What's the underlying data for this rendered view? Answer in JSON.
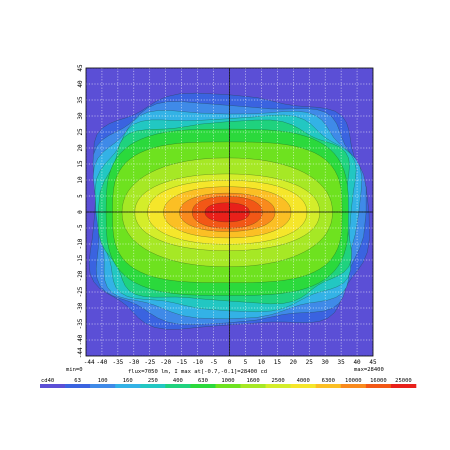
{
  "chart_data": {
    "type": "heatmap",
    "title": "",
    "xlabel": "",
    "ylabel": "",
    "x_ticks": [
      -44,
      -40,
      -35,
      -30,
      -25,
      -20,
      -15,
      -10,
      -5,
      0,
      5,
      10,
      15,
      20,
      25,
      30,
      35,
      40,
      45
    ],
    "y_ticks": [
      45,
      40,
      35,
      30,
      25,
      20,
      15,
      10,
      5,
      0,
      -5,
      -10,
      -15,
      -20,
      -25,
      -30,
      -35,
      -40,
      -44
    ],
    "xlim": [
      -45,
      45
    ],
    "ylim": [
      -45,
      45
    ],
    "grid": true,
    "peak": {
      "x": -0.7,
      "y": -0.1,
      "value": 28400
    },
    "contour_levels": [
      40,
      63,
      100,
      160,
      250,
      400,
      630,
      1000,
      1600,
      2500,
      4000,
      6300,
      10000,
      16000,
      25000
    ],
    "levels": [
      {
        "label": "cd40",
        "color": "#5b4fd6",
        "hw": 0,
        "hh": 0
      },
      {
        "label": "63",
        "color": "#3a63e0",
        "hw": 43,
        "hh": 36
      },
      {
        "label": "100",
        "color": "#3f8ae8",
        "hw": 42,
        "hh": 34
      },
      {
        "label": "160",
        "color": "#33b2e6",
        "hw": 41,
        "hh": 32
      },
      {
        "label": "250",
        "color": "#22c7c2",
        "hw": 40,
        "hh": 30
      },
      {
        "label": "400",
        "color": "#1fd27e",
        "hw": 39,
        "hh": 28
      },
      {
        "label": "630",
        "color": "#2bd93c",
        "hw": 38,
        "hh": 26
      },
      {
        "label": "1000",
        "color": "#6ee21f",
        "hw": 36,
        "hh": 22
      },
      {
        "label": "1600",
        "color": "#a6e825",
        "hw": 33,
        "hh": 17
      },
      {
        "label": "2500",
        "color": "#d4ed2a",
        "hw": 29,
        "hh": 12
      },
      {
        "label": "4000",
        "color": "#f5e62a",
        "hw": 25,
        "hh": 10
      },
      {
        "label": "6300",
        "color": "#fbbf24",
        "hw": 20,
        "hh": 8
      },
      {
        "label": "10000",
        "color": "#f98a1d",
        "hw": 15,
        "hh": 6
      },
      {
        "label": "16000",
        "color": "#f25716",
        "hw": 11,
        "hh": 5
      },
      {
        "label": "25000",
        "color": "#e8201a",
        "hw": 7,
        "hh": 3
      }
    ]
  },
  "annotations": {
    "min_label": "min=0",
    "max_label": "max=28400",
    "info_line": "flux=7050 lm, I max at[-0.7,-0.1]=28400 cd"
  }
}
